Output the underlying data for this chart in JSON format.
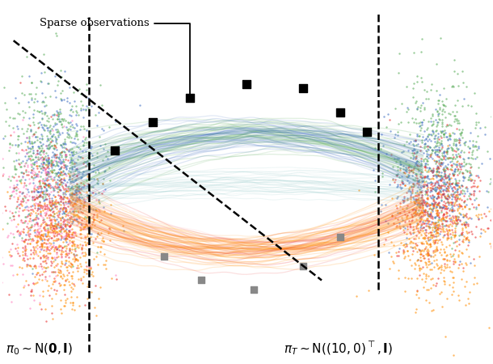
{
  "bg_color": "#ffffff",
  "pi0_label": "$\\pi_0 \\sim \\mathrm{N}(\\mathbf{0}, \\mathbf{I})$",
  "piT_label": "$\\pi_T \\sim \\mathrm{N}((10,0)^\\top, \\mathbf{I})$",
  "sparse_label": "Sparse observations",
  "colors": {
    "blue": "#4472C4",
    "green": "#5BAD5B",
    "red": "#E83030",
    "orange": "#FF8C00",
    "pink": "#FF69B4"
  },
  "seed": 42
}
